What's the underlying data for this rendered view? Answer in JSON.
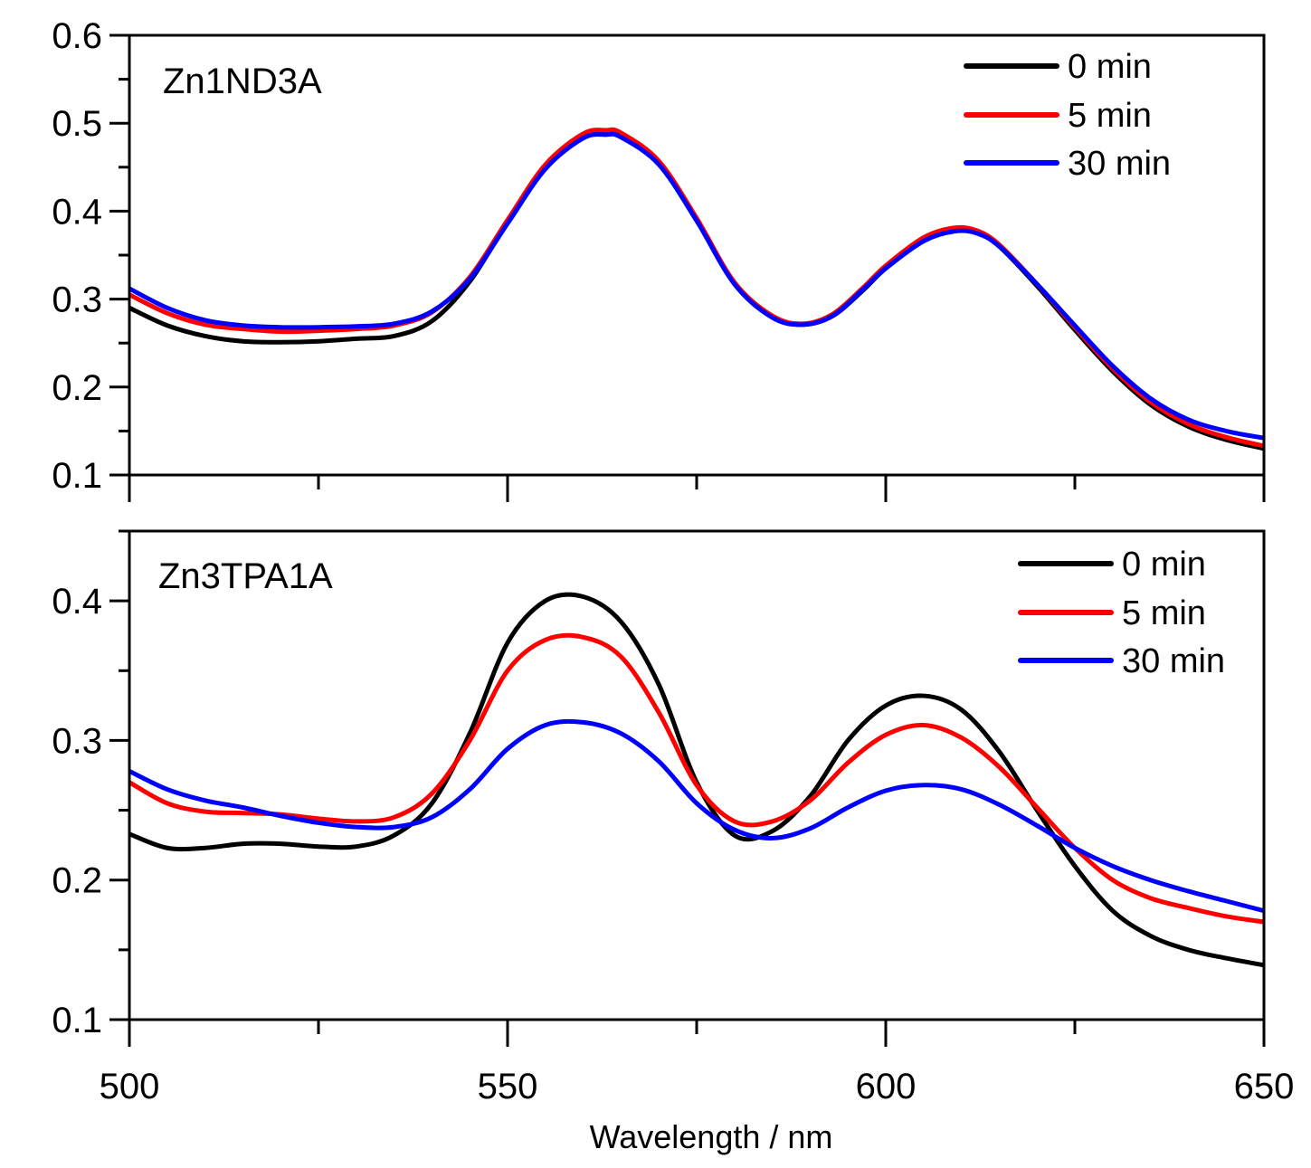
{
  "chart_data": {
    "type": "line",
    "xlabel": "Wavelength / nm",
    "xlim": [
      500,
      650
    ],
    "x_ticks": [
      "500",
      "550",
      "600",
      "650"
    ],
    "panels": [
      {
        "title": "Zn1ND3A",
        "ylim": [
          0.1,
          0.6
        ],
        "y_ticks": [
          "0.1",
          "0.2",
          "0.3",
          "0.4",
          "0.5",
          "0.6"
        ],
        "legend": [
          "0 min",
          "5 min",
          "30 min"
        ],
        "x": [
          500,
          505,
          510,
          515,
          520,
          525,
          530,
          535,
          540,
          545,
          550,
          555,
          560,
          563,
          565,
          570,
          575,
          580,
          585,
          589,
          593,
          597,
          600,
          605,
          609,
          612,
          615,
          620,
          625,
          630,
          635,
          640,
          645,
          650
        ],
        "series": [
          {
            "name": "0 min",
            "color": "#000000",
            "values": [
              0.29,
              0.27,
              0.258,
              0.252,
              0.251,
              0.252,
              0.255,
              0.258,
              0.275,
              0.32,
              0.388,
              0.45,
              0.485,
              0.49,
              0.487,
              0.455,
              0.39,
              0.318,
              0.28,
              0.271,
              0.281,
              0.31,
              0.335,
              0.366,
              0.378,
              0.376,
              0.36,
              0.315,
              0.265,
              0.218,
              0.18,
              0.155,
              0.14,
              0.13
            ]
          },
          {
            "name": "5 min",
            "color": "#ff0000",
            "values": [
              0.305,
              0.284,
              0.271,
              0.266,
              0.263,
              0.264,
              0.266,
              0.27,
              0.285,
              0.325,
              0.39,
              0.453,
              0.488,
              0.492,
              0.489,
              0.457,
              0.392,
              0.319,
              0.281,
              0.272,
              0.283,
              0.313,
              0.338,
              0.37,
              0.381,
              0.378,
              0.362,
              0.317,
              0.268,
              0.221,
              0.183,
              0.158,
              0.143,
              0.133
            ]
          },
          {
            "name": "30 min",
            "color": "#0000ff",
            "values": [
              0.312,
              0.29,
              0.276,
              0.27,
              0.268,
              0.268,
              0.269,
              0.272,
              0.286,
              0.323,
              0.386,
              0.448,
              0.483,
              0.487,
              0.484,
              0.453,
              0.389,
              0.317,
              0.279,
              0.271,
              0.281,
              0.311,
              0.335,
              0.366,
              0.377,
              0.375,
              0.36,
              0.317,
              0.27,
              0.224,
              0.187,
              0.163,
              0.15,
              0.142
            ]
          }
        ]
      },
      {
        "title": "Zn3TPA1A",
        "ylim": [
          0.1,
          0.45
        ],
        "y_ticks": [
          "0.1",
          "0.2",
          "0.3",
          "0.4"
        ],
        "legend": [
          "0 min",
          "5 min",
          "30 min"
        ],
        "x": [
          500,
          505,
          510,
          515,
          520,
          525,
          530,
          535,
          540,
          545,
          550,
          555,
          560,
          565,
          570,
          575,
          580,
          585,
          590,
          595,
          600,
          605,
          610,
          615,
          620,
          625,
          630,
          635,
          640,
          645,
          650
        ],
        "series": [
          {
            "name": "0 min",
            "color": "#000000",
            "values": [
              0.233,
              0.223,
              0.223,
              0.226,
              0.226,
              0.224,
              0.224,
              0.232,
              0.255,
              0.305,
              0.37,
              0.4,
              0.403,
              0.385,
              0.34,
              0.27,
              0.232,
              0.235,
              0.26,
              0.3,
              0.325,
              0.332,
              0.322,
              0.292,
              0.25,
              0.21,
              0.178,
              0.16,
              0.15,
              0.144,
              0.139
            ]
          },
          {
            "name": "5 min",
            "color": "#ff0000",
            "values": [
              0.27,
              0.255,
              0.249,
              0.248,
              0.247,
              0.244,
              0.242,
              0.245,
              0.262,
              0.3,
              0.35,
              0.372,
              0.374,
              0.36,
              0.32,
              0.268,
              0.242,
              0.242,
              0.257,
              0.284,
              0.304,
              0.311,
              0.302,
              0.281,
              0.252,
              0.223,
              0.2,
              0.187,
              0.18,
              0.174,
              0.17
            ]
          },
          {
            "name": "30 min",
            "color": "#0000ff",
            "values": [
              0.278,
              0.265,
              0.257,
              0.252,
              0.246,
              0.241,
              0.238,
              0.238,
              0.245,
              0.265,
              0.294,
              0.311,
              0.313,
              0.305,
              0.285,
              0.255,
              0.236,
              0.23,
              0.237,
              0.252,
              0.264,
              0.268,
              0.265,
              0.254,
              0.239,
              0.223,
              0.21,
              0.2,
              0.192,
              0.185,
              0.178
            ]
          }
        ]
      }
    ]
  }
}
